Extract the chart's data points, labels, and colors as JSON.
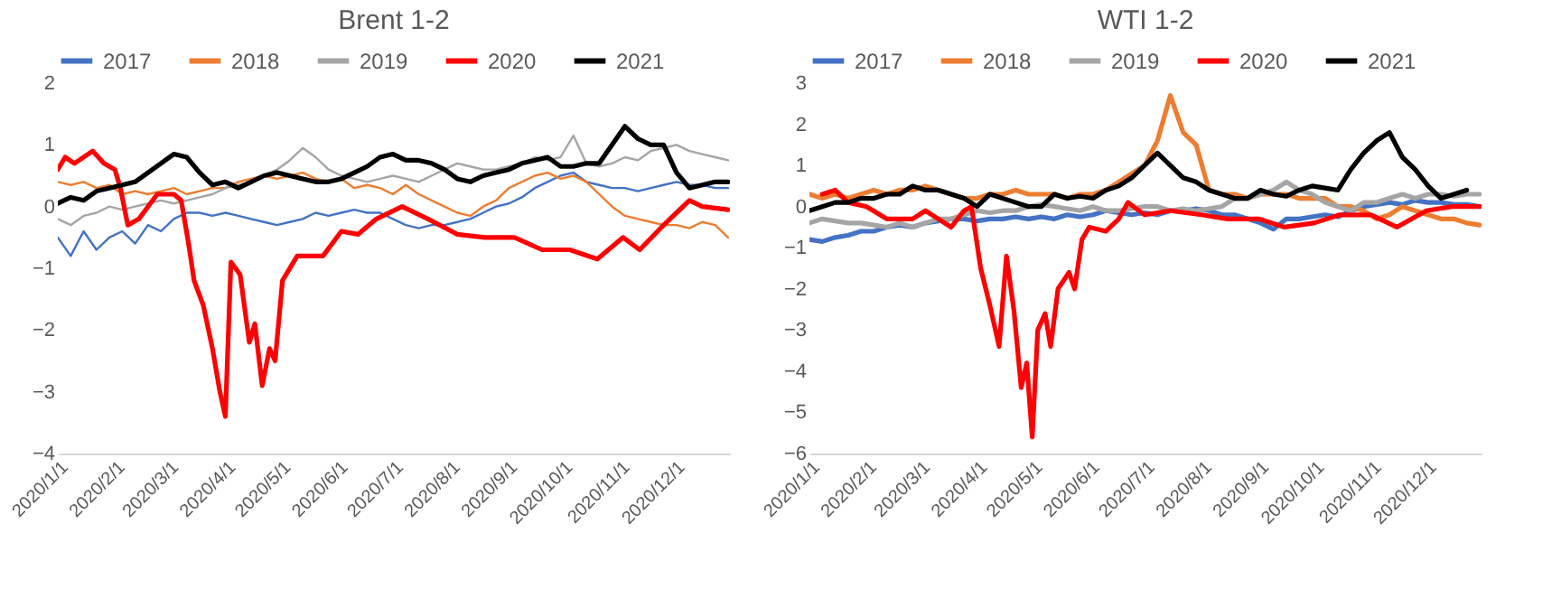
{
  "chart_data": [
    {
      "type": "line",
      "title": "Brent 1-2",
      "legend": "top",
      "grid": false,
      "x": [
        "2020-01-01",
        "2020-01-08",
        "2020-01-15",
        "2020-01-22",
        "2020-01-29",
        "2020-02-05",
        "2020-02-12",
        "2020-02-19",
        "2020-02-26",
        "2020-03-04",
        "2020-03-11",
        "2020-03-18",
        "2020-03-25",
        "2020-04-01",
        "2020-04-08",
        "2020-04-15",
        "2020-04-22",
        "2020-04-29",
        "2020-05-06",
        "2020-05-13",
        "2020-05-20",
        "2020-05-27",
        "2020-06-03",
        "2020-06-10",
        "2020-06-17",
        "2020-06-24",
        "2020-07-01",
        "2020-07-08",
        "2020-07-15",
        "2020-07-22",
        "2020-07-29",
        "2020-08-05",
        "2020-08-12",
        "2020-08-19",
        "2020-08-26",
        "2020-09-02",
        "2020-09-09",
        "2020-09-16",
        "2020-09-23",
        "2020-09-30",
        "2020-10-07",
        "2020-10-14",
        "2020-10-21",
        "2020-10-28",
        "2020-11-04",
        "2020-11-11",
        "2020-11-18",
        "2020-11-25",
        "2020-12-02",
        "2020-12-09",
        "2020-12-16",
        "2020-12-23",
        "2020-12-30"
      ],
      "xlim": [
        "2020-01-01",
        "2020-12-31"
      ],
      "xticks": [
        {
          "value": "2020-01-01",
          "label": "2020/1/1"
        },
        {
          "value": "2020-02-01",
          "label": "2020/2/1"
        },
        {
          "value": "2020-03-01",
          "label": "2020/3/1"
        },
        {
          "value": "2020-04-01",
          "label": "2020/4/1"
        },
        {
          "value": "2020-05-01",
          "label": "2020/5/1"
        },
        {
          "value": "2020-06-01",
          "label": "2020/6/1"
        },
        {
          "value": "2020-07-01",
          "label": "2020/7/1"
        },
        {
          "value": "2020-08-01",
          "label": "2020/8/1"
        },
        {
          "value": "2020-09-01",
          "label": "2020/9/1"
        },
        {
          "value": "2020-10-01",
          "label": "2020/10/1"
        },
        {
          "value": "2020-11-01",
          "label": "2020/11/1"
        },
        {
          "value": "2020-12-01",
          "label": "2020/12/1"
        }
      ],
      "ylim": [
        -4,
        2
      ],
      "yticks": [
        -4,
        -3,
        -2,
        -1,
        0,
        1,
        2
      ],
      "series": [
        {
          "name": "2017",
          "color": "#4472c4",
          "values": [
            -0.5,
            -0.8,
            -0.4,
            -0.7,
            -0.5,
            -0.4,
            -0.6,
            -0.3,
            -0.4,
            -0.2,
            -0.1,
            -0.1,
            -0.15,
            -0.1,
            -0.15,
            -0.2,
            -0.25,
            -0.3,
            -0.25,
            -0.2,
            -0.1,
            -0.15,
            -0.1,
            -0.05,
            -0.1,
            -0.1,
            -0.2,
            -0.3,
            -0.35,
            -0.3,
            -0.3,
            -0.25,
            -0.2,
            -0.1,
            0.0,
            0.05,
            0.15,
            0.3,
            0.4,
            0.5,
            0.55,
            0.4,
            0.35,
            0.3,
            0.3,
            0.25,
            0.3,
            0.35,
            0.4,
            0.35,
            0.35,
            0.3,
            0.3
          ]
        },
        {
          "name": "2018",
          "color": "#ed7d31",
          "values": [
            0.4,
            0.35,
            0.4,
            0.3,
            0.35,
            0.2,
            0.25,
            0.2,
            0.25,
            0.3,
            0.2,
            0.25,
            0.3,
            0.3,
            0.4,
            0.45,
            0.5,
            0.45,
            0.5,
            0.55,
            0.45,
            0.4,
            0.45,
            0.3,
            0.35,
            0.3,
            0.2,
            0.35,
            0.2,
            0.1,
            0.0,
            -0.1,
            -0.15,
            0.0,
            0.1,
            0.3,
            0.4,
            0.5,
            0.55,
            0.45,
            0.5,
            0.4,
            0.2,
            0.0,
            -0.15,
            -0.2,
            -0.25,
            -0.3,
            -0.3,
            -0.35,
            -0.25,
            -0.3,
            -0.5
          ]
        },
        {
          "name": "2019",
          "color": "#a5a5a5",
          "values": [
            -0.2,
            -0.3,
            -0.15,
            -0.1,
            0.0,
            -0.05,
            0.0,
            0.05,
            0.1,
            0.05,
            0.1,
            0.15,
            0.2,
            0.3,
            0.35,
            0.4,
            0.5,
            0.6,
            0.75,
            0.95,
            0.8,
            0.6,
            0.5,
            0.45,
            0.4,
            0.45,
            0.5,
            0.45,
            0.4,
            0.5,
            0.6,
            0.7,
            0.65,
            0.6,
            0.6,
            0.65,
            0.7,
            0.8,
            0.75,
            0.8,
            1.15,
            0.7,
            0.65,
            0.7,
            0.8,
            0.75,
            0.9,
            0.95,
            1.0,
            0.9,
            0.85,
            0.8,
            0.75
          ]
        },
        {
          "name": "2020",
          "color": "#ff0000",
          "x": [
            "2020-01-01",
            "2020-01-05",
            "2020-01-10",
            "2020-01-20",
            "2020-01-26",
            "2020-02-01",
            "2020-02-04",
            "2020-02-08",
            "2020-02-14",
            "2020-02-24",
            "2020-03-04",
            "2020-03-08",
            "2020-03-12",
            "2020-03-15",
            "2020-03-20",
            "2020-03-25",
            "2020-03-29",
            "2020-04-01",
            "2020-04-04",
            "2020-04-09",
            "2020-04-14",
            "2020-04-17",
            "2020-04-21",
            "2020-04-25",
            "2020-04-28",
            "2020-05-02",
            "2020-05-10",
            "2020-05-24",
            "2020-06-03",
            "2020-06-12",
            "2020-06-22",
            "2020-07-06",
            "2020-07-20",
            "2020-08-05",
            "2020-08-20",
            "2020-09-05",
            "2020-09-20",
            "2020-10-05",
            "2020-10-20",
            "2020-11-03",
            "2020-11-12",
            "2020-11-25",
            "2020-12-02",
            "2020-12-09",
            "2020-12-16",
            "2020-12-30"
          ],
          "values": [
            0.6,
            0.8,
            0.7,
            0.9,
            0.7,
            0.6,
            0.3,
            -0.3,
            -0.2,
            0.2,
            0.2,
            0.1,
            -0.6,
            -1.2,
            -1.6,
            -2.3,
            -3.0,
            -3.4,
            -0.9,
            -1.1,
            -2.2,
            -1.9,
            -2.9,
            -2.3,
            -2.5,
            -1.2,
            -0.8,
            -0.8,
            -0.4,
            -0.45,
            -0.2,
            0.0,
            -0.2,
            -0.45,
            -0.5,
            -0.5,
            -0.7,
            -0.7,
            -0.85,
            -0.5,
            -0.7,
            -0.3,
            -0.1,
            0.1,
            0.0,
            -0.05
          ]
        },
        {
          "name": "2021",
          "color": "#000000",
          "values": [
            0.05,
            0.15,
            0.1,
            0.25,
            0.3,
            0.35,
            0.4,
            0.55,
            0.7,
            0.85,
            0.8,
            0.55,
            0.35,
            0.4,
            0.3,
            0.4,
            0.5,
            0.55,
            0.5,
            0.45,
            0.4,
            0.4,
            0.45,
            0.55,
            0.65,
            0.8,
            0.85,
            0.75,
            0.75,
            0.7,
            0.6,
            0.45,
            0.4,
            0.5,
            0.55,
            0.6,
            0.7,
            0.75,
            0.8,
            0.65,
            0.65,
            0.7,
            0.7,
            1.0,
            1.3,
            1.1,
            1.0,
            1.0,
            0.55,
            0.3,
            0.35,
            0.4,
            0.4
          ]
        }
      ]
    },
    {
      "type": "line",
      "title": "WTI 1-2",
      "legend": "top",
      "grid": false,
      "x": [
        "2020-01-01",
        "2020-01-08",
        "2020-01-15",
        "2020-01-22",
        "2020-01-29",
        "2020-02-05",
        "2020-02-12",
        "2020-02-19",
        "2020-02-26",
        "2020-03-04",
        "2020-03-11",
        "2020-03-18",
        "2020-03-25",
        "2020-04-01",
        "2020-04-08",
        "2020-04-15",
        "2020-04-22",
        "2020-04-29",
        "2020-05-06",
        "2020-05-13",
        "2020-05-20",
        "2020-05-27",
        "2020-06-03",
        "2020-06-10",
        "2020-06-17",
        "2020-06-24",
        "2020-07-01",
        "2020-07-08",
        "2020-07-15",
        "2020-07-22",
        "2020-07-29",
        "2020-08-05",
        "2020-08-12",
        "2020-08-19",
        "2020-08-26",
        "2020-09-02",
        "2020-09-09",
        "2020-09-16",
        "2020-09-23",
        "2020-09-30",
        "2020-10-07",
        "2020-10-14",
        "2020-10-21",
        "2020-10-28",
        "2020-11-04",
        "2020-11-11",
        "2020-11-18",
        "2020-11-25",
        "2020-12-02",
        "2020-12-09",
        "2020-12-16",
        "2020-12-23",
        "2020-12-30"
      ],
      "xlim": [
        "2020-01-01",
        "2020-12-31"
      ],
      "xticks": [
        {
          "value": "2020-01-01",
          "label": "2020/1/1"
        },
        {
          "value": "2020-02-01",
          "label": "2020/2/1"
        },
        {
          "value": "2020-03-01",
          "label": "2020/3/1"
        },
        {
          "value": "2020-04-01",
          "label": "2020/4/1"
        },
        {
          "value": "2020-05-01",
          "label": "2020/5/1"
        },
        {
          "value": "2020-06-01",
          "label": "2020/6/1"
        },
        {
          "value": "2020-07-01",
          "label": "2020/7/1"
        },
        {
          "value": "2020-08-01",
          "label": "2020/8/1"
        },
        {
          "value": "2020-09-01",
          "label": "2020/9/1"
        },
        {
          "value": "2020-10-01",
          "label": "2020/10/1"
        },
        {
          "value": "2020-11-01",
          "label": "2020/11/1"
        },
        {
          "value": "2020-12-01",
          "label": "2020/12/1"
        }
      ],
      "ylim": [
        -6,
        3
      ],
      "yticks": [
        -6,
        -5,
        -4,
        -3,
        -2,
        -1,
        0,
        1,
        2,
        3
      ],
      "series": [
        {
          "name": "2017",
          "color": "#4472c4",
          "values": [
            -0.8,
            -0.85,
            -0.75,
            -0.7,
            -0.6,
            -0.6,
            -0.5,
            -0.45,
            -0.5,
            -0.4,
            -0.35,
            -0.3,
            -0.3,
            -0.35,
            -0.3,
            -0.3,
            -0.25,
            -0.3,
            -0.25,
            -0.3,
            -0.2,
            -0.25,
            -0.2,
            -0.1,
            -0.15,
            -0.2,
            -0.15,
            -0.2,
            -0.1,
            -0.1,
            -0.05,
            -0.1,
            -0.2,
            -0.2,
            -0.3,
            -0.4,
            -0.55,
            -0.3,
            -0.3,
            -0.25,
            -0.2,
            -0.25,
            -0.1,
            0.0,
            0.05,
            0.1,
            0.05,
            0.15,
            0.1,
            0.1,
            0.05,
            0.05,
            0.0
          ]
        },
        {
          "name": "2018",
          "color": "#ed7d31",
          "values": [
            0.3,
            0.2,
            0.3,
            0.2,
            0.3,
            0.4,
            0.3,
            0.4,
            0.4,
            0.5,
            0.4,
            0.3,
            0.2,
            0.2,
            0.3,
            0.3,
            0.4,
            0.3,
            0.3,
            0.3,
            0.2,
            0.3,
            0.3,
            0.4,
            0.6,
            0.8,
            1.0,
            1.6,
            2.7,
            1.8,
            1.5,
            0.4,
            0.3,
            0.3,
            0.2,
            0.3,
            0.3,
            0.3,
            0.2,
            0.2,
            0.2,
            0.0,
            0.0,
            -0.1,
            -0.3,
            -0.2,
            0.0,
            -0.1,
            -0.2,
            -0.3,
            -0.3,
            -0.4,
            -0.45
          ]
        },
        {
          "name": "2019",
          "color": "#a5a5a5",
          "values": [
            -0.4,
            -0.3,
            -0.35,
            -0.4,
            -0.4,
            -0.45,
            -0.5,
            -0.4,
            -0.5,
            -0.4,
            -0.3,
            -0.3,
            -0.2,
            -0.1,
            -0.15,
            -0.1,
            -0.1,
            0.0,
            0.05,
            0.0,
            -0.05,
            -0.1,
            0.0,
            -0.1,
            -0.1,
            -0.05,
            0.0,
            0.0,
            -0.1,
            -0.05,
            -0.1,
            -0.05,
            0.0,
            0.2,
            0.2,
            0.3,
            0.4,
            0.6,
            0.4,
            0.3,
            0.1,
            0.0,
            -0.1,
            0.1,
            0.1,
            0.2,
            0.3,
            0.2,
            0.3,
            0.3,
            0.25,
            0.3,
            0.3
          ]
        },
        {
          "name": "2020",
          "color": "#ff0000",
          "x": [
            "2020-01-08",
            "2020-01-15",
            "2020-01-22",
            "2020-02-01",
            "2020-02-12",
            "2020-02-26",
            "2020-03-04",
            "2020-03-11",
            "2020-03-18",
            "2020-03-25",
            "2020-03-29",
            "2020-04-03",
            "2020-04-08",
            "2020-04-13",
            "2020-04-17",
            "2020-04-21",
            "2020-04-25",
            "2020-04-28",
            "2020-05-01",
            "2020-05-04",
            "2020-05-08",
            "2020-05-11",
            "2020-05-15",
            "2020-05-21",
            "2020-05-24",
            "2020-05-28",
            "2020-06-01",
            "2020-06-10",
            "2020-06-17",
            "2020-06-22",
            "2020-07-01",
            "2020-07-15",
            "2020-08-01",
            "2020-08-15",
            "2020-09-01",
            "2020-09-15",
            "2020-10-01",
            "2020-10-15",
            "2020-11-01",
            "2020-11-15",
            "2020-12-01",
            "2020-12-15",
            "2020-12-30"
          ],
          "values": [
            0.3,
            0.4,
            0.1,
            0.0,
            -0.3,
            -0.3,
            -0.1,
            -0.3,
            -0.5,
            -0.1,
            0.0,
            -1.5,
            -2.4,
            -3.4,
            -1.2,
            -2.5,
            -4.4,
            -3.8,
            -5.6,
            -3.0,
            -2.6,
            -3.4,
            -2.0,
            -1.6,
            -2.0,
            -0.8,
            -0.5,
            -0.6,
            -0.3,
            0.1,
            -0.2,
            -0.1,
            -0.2,
            -0.3,
            -0.3,
            -0.5,
            -0.4,
            -0.2,
            -0.2,
            -0.5,
            -0.1,
            0.0,
            0.0
          ]
        },
        {
          "name": "2021",
          "color": "#000000",
          "values": [
            -0.1,
            0.0,
            0.1,
            0.1,
            0.2,
            0.2,
            0.3,
            0.3,
            0.5,
            0.4,
            0.4,
            0.3,
            0.2,
            0.0,
            0.3,
            0.2,
            0.1,
            0.0,
            0.0,
            0.3,
            0.2,
            0.25,
            0.2,
            0.4,
            0.5,
            0.7,
            1.0,
            1.3,
            1.0,
            0.7,
            0.6,
            0.4,
            0.3,
            0.2,
            0.2,
            0.4,
            0.3,
            0.25,
            0.4,
            0.5,
            0.45,
            0.4,
            0.9,
            1.3,
            1.6,
            1.8,
            1.2,
            0.9,
            0.5,
            0.2,
            0.3,
            0.4,
            null
          ]
        }
      ]
    }
  ]
}
